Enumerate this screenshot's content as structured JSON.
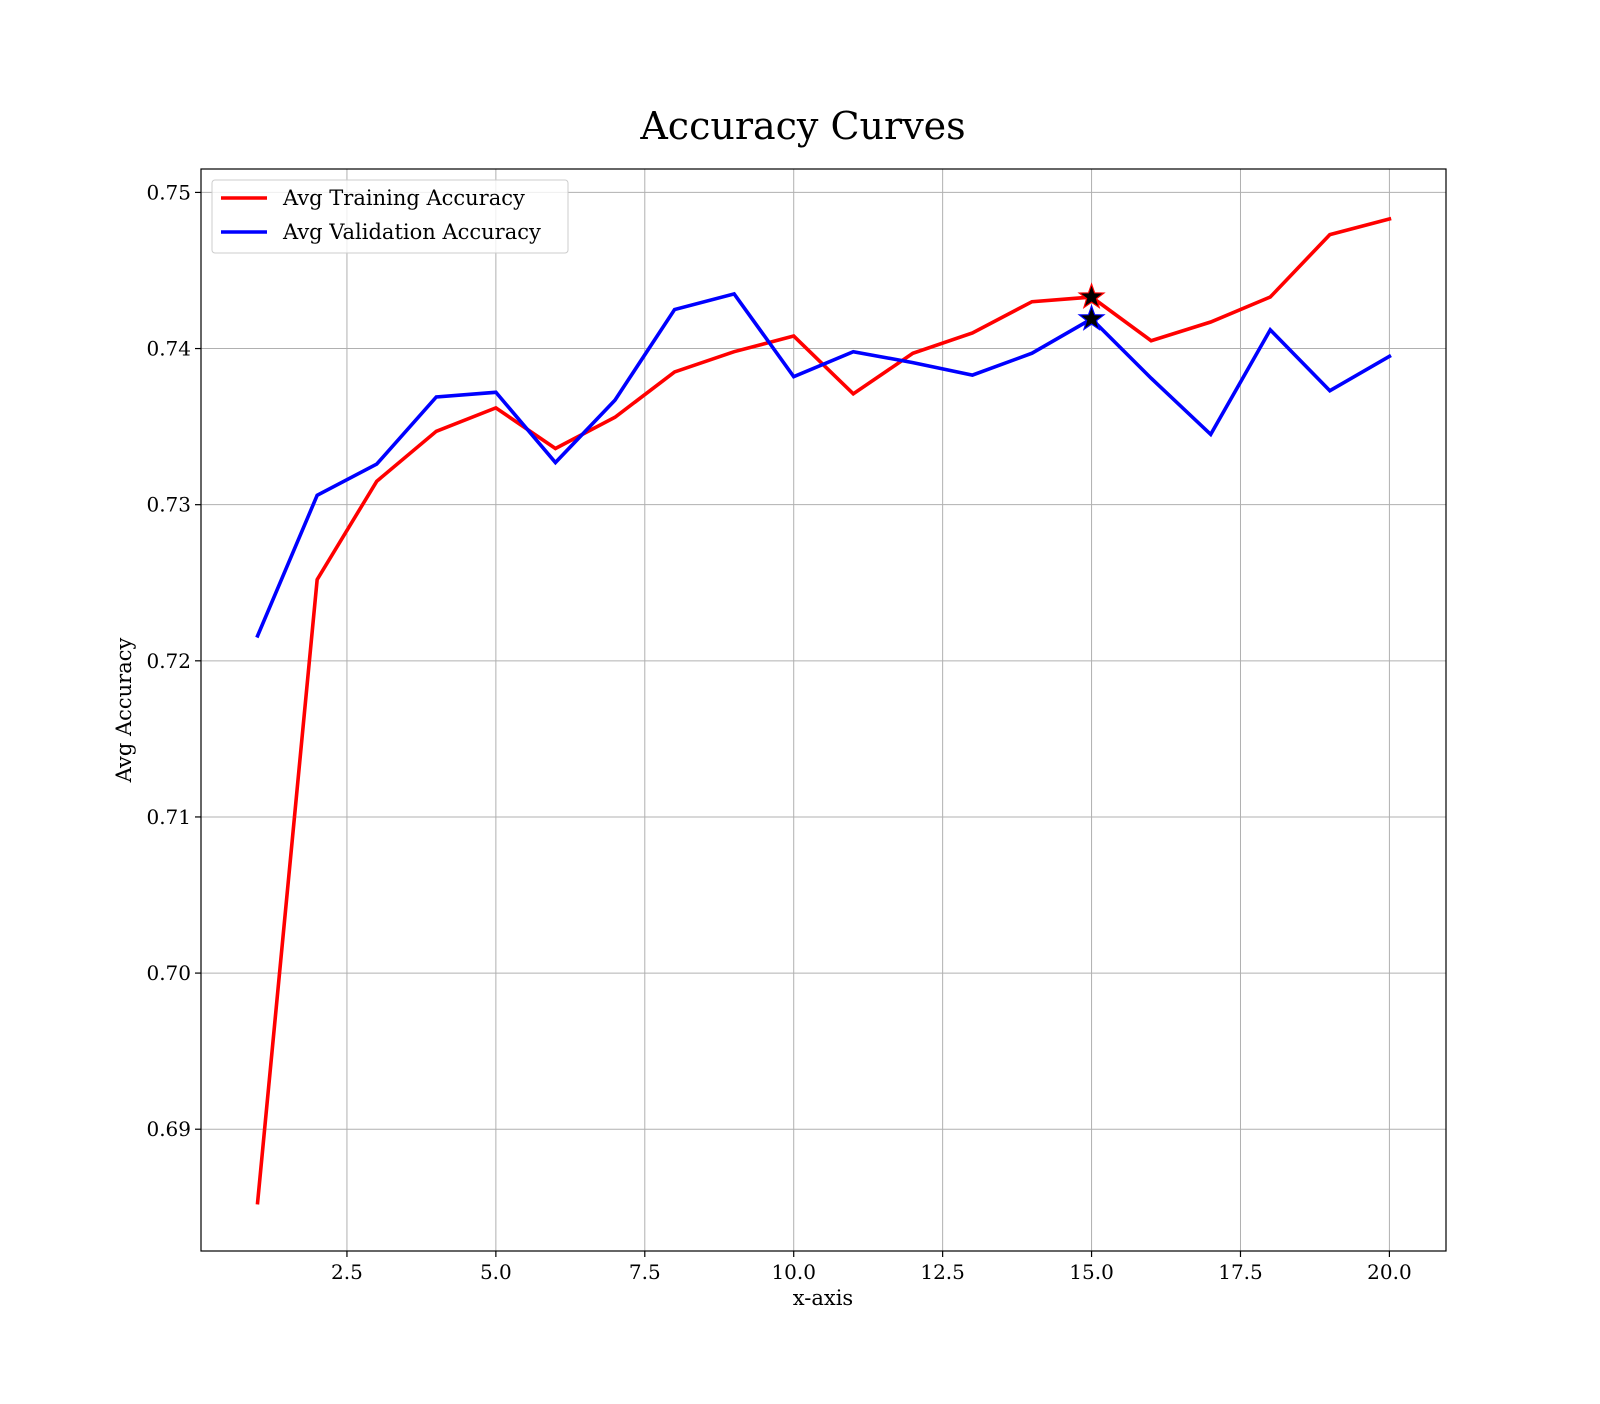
{
  "chart_data": {
    "type": "line",
    "title": "Accuracy Curves",
    "xlabel": "x-axis",
    "ylabel": "Avg Accuracy",
    "x": [
      1,
      2,
      3,
      4,
      5,
      6,
      7,
      8,
      9,
      10,
      11,
      12,
      13,
      14,
      15,
      16,
      17,
      18,
      19,
      20
    ],
    "xlim": [
      0.05,
      20.95
    ],
    "ylim": [
      0.6822,
      0.7515
    ],
    "xticks": [
      2.5,
      5.0,
      7.5,
      10.0,
      12.5,
      15.0,
      17.5,
      20.0
    ],
    "xtick_labels": [
      "2.5",
      "5.0",
      "7.5",
      "10.0",
      "12.5",
      "15.0",
      "17.5",
      "20.0"
    ],
    "yticks": [
      0.69,
      0.7,
      0.71,
      0.72,
      0.73,
      0.74,
      0.75
    ],
    "ytick_labels": [
      "0.69",
      "0.70",
      "0.71",
      "0.72",
      "0.73",
      "0.74",
      "0.75"
    ],
    "grid": true,
    "legend_position": "top-left",
    "series": [
      {
        "name": "Avg Training Accuracy",
        "color": "#ff0000",
        "values": [
          0.6853,
          0.7252,
          0.7315,
          0.7347,
          0.7362,
          0.7336,
          0.7356,
          0.7385,
          0.7398,
          0.7408,
          0.7371,
          0.7397,
          0.741,
          0.743,
          0.7433,
          0.7405,
          0.7417,
          0.7433,
          0.7473,
          0.7483
        ]
      },
      {
        "name": "Avg Validation Accuracy",
        "color": "#0000ff",
        "values": [
          0.7216,
          0.7306,
          0.7326,
          0.7369,
          0.7372,
          0.7327,
          0.7367,
          0.7425,
          0.7435,
          0.7382,
          0.7398,
          0.7391,
          0.7383,
          0.7397,
          0.7419,
          0.7381,
          0.7345,
          0.7412,
          0.7373,
          0.7395
        ]
      }
    ],
    "markers": [
      {
        "series": "Avg Training Accuracy",
        "x": 15,
        "y": 0.7433,
        "shape": "star",
        "color": "#000000"
      },
      {
        "series": "Avg Validation Accuracy",
        "x": 15,
        "y": 0.7419,
        "shape": "star",
        "color": "#000000"
      }
    ]
  }
}
